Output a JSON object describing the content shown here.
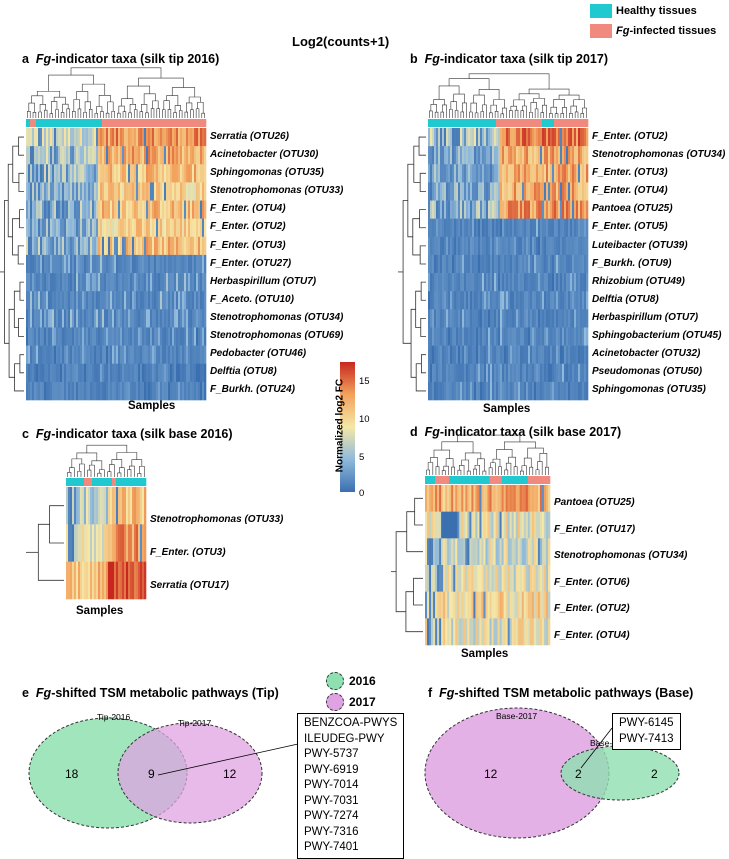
{
  "main_title": "Log2(counts+1)",
  "legend": {
    "healthy": "Healthy tissues",
    "infected_prefix": "Fg",
    "infected_suffix": "-infected tissues",
    "healthy_color": "#1fc9cf",
    "infected_color": "#f08a7e"
  },
  "colorbar": {
    "label": "Normalized log2 FC",
    "ticks": [
      "15",
      "10",
      "5",
      "0"
    ],
    "colors": [
      "#3a6fb0",
      "#8fb9dc",
      "#f5e8a8",
      "#f2a25d",
      "#c8271f"
    ]
  },
  "panels": {
    "a": {
      "letter": "a",
      "title_italic": "Fg",
      "title_rest": "-indicator taxa (silk tip 2016)",
      "samples": "Samples",
      "rows": [
        "Serratia (OTU26)",
        "Acinetobacter (OTU30)",
        "Sphingomonas (OTU35)",
        "Stenotrophomonas (OTU33)",
        "F_Enter. (OTU4)",
        "F_Enter. (OTU2)",
        "F_Enter. (OTU3)",
        "F_Enter. (OTU27)",
        "Herbaspirillum (OTU7)",
        "F_Aceto. (OTU10)",
        "Stenotrophomonas (OTU34)",
        "Stenotrophomonas (OTU69)",
        "Pedobacter (OTU46)",
        "Delftia (OTU8)",
        "F_Burkh. (OTU24)"
      ]
    },
    "b": {
      "letter": "b",
      "title_italic": "Fg",
      "title_rest": "-indicator taxa (silk tip 2017)",
      "samples": "Samples",
      "rows": [
        "F_Enter. (OTU2)",
        "Stenotrophomonas (OTU34)",
        "F_Enter. (OTU3)",
        "F_Enter. (OTU4)",
        "Pantoea (OTU25)",
        "F_Enter. (OTU5)",
        "Luteibacter (OTU39)",
        "F_Burkh. (OTU9)",
        "Rhizobium (OTU49)",
        "Delftia (OTU8)",
        "Herbaspirillum (OTU7)",
        "Sphingobacterium (OTU45)",
        "Acinetobacter (OTU32)",
        "Pseudomonas (OTU50)",
        "Sphingomonas (OTU35)"
      ]
    },
    "c": {
      "letter": "c",
      "title_italic": "Fg",
      "title_rest": "-indicator taxa (silk base 2016)",
      "samples": "Samples",
      "rows": [
        "Stenotrophomonas (OTU33)",
        "F_Enter. (OTU3)",
        "Serratia (OTU17)"
      ]
    },
    "d": {
      "letter": "d",
      "title_italic": "Fg",
      "title_rest": "-indicator taxa (silk base 2017)",
      "samples": "Samples",
      "rows": [
        "Pantoea (OTU25)",
        "F_Enter. (OTU17)",
        "Stenotrophomonas (OTU34)",
        "F_Enter. (OTU6)",
        "F_Enter. (OTU2)",
        "F_Enter. (OTU4)"
      ]
    }
  },
  "venn_legend": {
    "y2016": "2016",
    "y2017": "2017",
    "color2016": "#8fe0b0",
    "color2017": "#dfa3e3"
  },
  "venn_tip": {
    "letter": "e",
    "title_italic": "Fg",
    "title_rest": "-shifted TSM metabolic pathways (Tip)",
    "set1_label": "Tip-2016",
    "set2_label": "Tip-2017",
    "only1": "18",
    "both": "9",
    "only2": "12",
    "pathways": [
      "BENZCOA-PWYS",
      "ILEUDEG-PWY",
      "PWY-5737",
      "PWY-6919",
      "PWY-7014",
      "PWY-7031",
      "PWY-7274",
      "PWY-7316",
      "PWY-7401"
    ]
  },
  "venn_base": {
    "letter": "f",
    "title_italic": "Fg",
    "title_rest": "-shifted TSM metabolic pathways (Base)",
    "set1_label": "Base-2017",
    "set2_label": "Base-2016",
    "only1": "12",
    "both": "2",
    "only2": "2",
    "pathways": [
      "PWY-6145",
      "PWY-7413"
    ]
  },
  "chart_data": [
    {
      "type": "heatmap",
      "title": "Fg-indicator taxa (silk tip 2016)",
      "xlabel": "Samples",
      "value_range": [
        0,
        17
      ],
      "rows": [
        "Serratia (OTU26)",
        "Acinetobacter (OTU30)",
        "Sphingomonas (OTU35)",
        "Stenotrophomonas (OTU33)",
        "F_Enter. (OTU4)",
        "F_Enter. (OTU2)",
        "F_Enter. (OTU3)",
        "F_Enter. (OTU27)",
        "Herbaspirillum (OTU7)",
        "F_Aceto. (OTU10)",
        "Stenotrophomonas (OTU34)",
        "Stenotrophomonas (OTU69)",
        "Pedobacter (OTU46)",
        "Delftia (OTU8)",
        "F_Burkh. (OTU24)"
      ],
      "row_mean_level": [
        11,
        10,
        9,
        8,
        9,
        8,
        9,
        3,
        3,
        3,
        3,
        2,
        2,
        1,
        1
      ]
    },
    {
      "type": "heatmap",
      "title": "Fg-indicator taxa (silk tip 2017)",
      "xlabel": "Samples",
      "value_range": [
        0,
        17
      ],
      "rows": [
        "F_Enter. (OTU2)",
        "Stenotrophomonas (OTU34)",
        "F_Enter. (OTU3)",
        "F_Enter. (OTU4)",
        "Pantoea (OTU25)",
        "F_Enter. (OTU5)",
        "Luteibacter (OTU39)",
        "F_Burkh. (OTU9)",
        "Rhizobium (OTU49)",
        "Delftia (OTU8)",
        "Herbaspirillum (OTU7)",
        "Sphingobacterium (OTU45)",
        "Acinetobacter (OTU32)",
        "Pseudomonas (OTU50)",
        "Sphingomonas (OTU35)"
      ],
      "row_mean_level": [
        11,
        9,
        9,
        9,
        10,
        2,
        2,
        2,
        2,
        2,
        2,
        2,
        2,
        2,
        2
      ]
    },
    {
      "type": "heatmap",
      "title": "Fg-indicator taxa (silk base 2016)",
      "xlabel": "Samples",
      "value_range": [
        0,
        17
      ],
      "rows": [
        "Stenotrophomonas (OTU33)",
        "F_Enter. (OTU3)",
        "Serratia (OTU17)"
      ],
      "row_mean_level": [
        8,
        10,
        13
      ]
    },
    {
      "type": "heatmap",
      "title": "Fg-indicator taxa (silk base 2017)",
      "xlabel": "Samples",
      "value_range": [
        0,
        17
      ],
      "rows": [
        "Pantoea (OTU25)",
        "F_Enter. (OTU17)",
        "Stenotrophomonas (OTU34)",
        "F_Enter. (OTU6)",
        "F_Enter. (OTU2)",
        "F_Enter. (OTU4)"
      ],
      "row_mean_level": [
        12,
        8,
        7,
        8,
        9,
        8
      ]
    }
  ]
}
